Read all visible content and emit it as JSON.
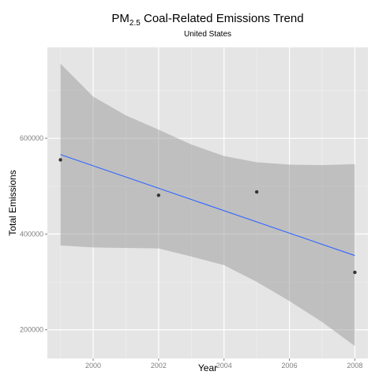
{
  "chart_data": {
    "type": "scatter",
    "title_main": "PM",
    "title_sub": "2.5",
    "title_rest": " Coal-Related Emissions Trend",
    "subtitle": "United States",
    "xlabel": "Year",
    "ylabel": "Total Emissions",
    "xlim": [
      1998.6,
      2008.4
    ],
    "ylim": [
      140000,
      790000
    ],
    "x_ticks": [
      2000,
      2002,
      2004,
      2006,
      2008
    ],
    "x_tick_labels": [
      "2000",
      "2002",
      "2004",
      "2006",
      "2008"
    ],
    "y_ticks": [
      200000,
      400000,
      600000
    ],
    "y_tick_labels": [
      "200000",
      "400000",
      "600000"
    ],
    "grid": true,
    "points": [
      {
        "x": 1999,
        "y": 555000
      },
      {
        "x": 2002,
        "y": 481000
      },
      {
        "x": 2005,
        "y": 488000
      },
      {
        "x": 2008,
        "y": 320000
      }
    ],
    "trend_line": {
      "color": "#3366ff",
      "x": [
        1999,
        2008
      ],
      "y": [
        566000,
        355000
      ]
    },
    "confidence_band": {
      "color": "#999999",
      "x": [
        1999,
        2000,
        2001,
        2002,
        2003,
        2004,
        2005,
        2006,
        2007,
        2008
      ],
      "upper": [
        756000,
        687000,
        648000,
        618000,
        587000,
        563000,
        550000,
        545000,
        544000,
        546000
      ],
      "lower": [
        376000,
        372000,
        371000,
        370000,
        353000,
        335000,
        300000,
        260000,
        216000,
        166000
      ]
    },
    "colors": {
      "panel_bg": "#e5e5e5",
      "grid_major": "#ffffff",
      "grid_minor": "#f2f2f2",
      "point": "#333333"
    }
  }
}
